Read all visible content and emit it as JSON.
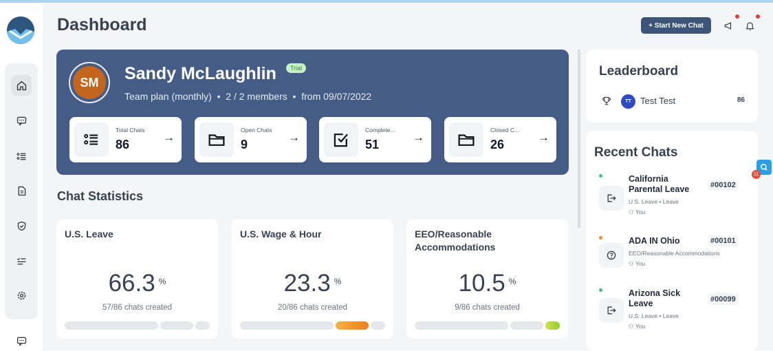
{
  "header": {
    "title": "Dashboard",
    "new_chat_label": "+ Start New Chat",
    "icons": [
      "megaphone-icon",
      "bell-icon"
    ]
  },
  "sidebar": {
    "items": [
      "home-icon",
      "chat-icon",
      "list-icon",
      "document-icon",
      "shield-icon",
      "checklist-icon",
      "gear-icon"
    ],
    "bottom": "chat-icon"
  },
  "profile": {
    "initials": "SM",
    "name": "Sandy McLaughlin",
    "badge": "Trial",
    "plan": "Team plan (monthly)",
    "members": "2 / 2 members",
    "since": "from 09/07/2022",
    "stats": [
      {
        "label": "Total Chats",
        "value": "86",
        "icon": "list-icon"
      },
      {
        "label": "Open Chats",
        "value": "9",
        "icon": "folder-icon"
      },
      {
        "label": "Complete...",
        "value": "51",
        "icon": "checkbox-icon"
      },
      {
        "label": "Closed C...",
        "value": "26",
        "icon": "folder-icon"
      }
    ]
  },
  "chat_statistics": {
    "title": "Chat Statistics",
    "cards": [
      {
        "title": "U.S. Leave",
        "percent": "66.3",
        "unit": "%",
        "sub": "57/86 chats created"
      },
      {
        "title": "U.S. Wage & Hour",
        "percent": "23.3",
        "unit": "%",
        "sub": "20/86 chats created"
      },
      {
        "title": "EEO/Reasonable Accommodations",
        "percent": "10.5",
        "unit": "%",
        "sub": "9/86 chats created"
      }
    ]
  },
  "leaderboard": {
    "title": "Leaderboard",
    "rows": [
      {
        "initials": "TT",
        "name": "Test Test",
        "score": "86"
      }
    ]
  },
  "recent_chats": {
    "title": "Recent Chats",
    "items": [
      {
        "name": "California Parental Leave",
        "id": "#00102",
        "category": "U.S. Leave • Leave",
        "user": "You",
        "icon": "exit-icon",
        "dot": "#3bbf8c"
      },
      {
        "name": "ADA IN Ohio",
        "id": "#00101",
        "category": "EEO/Reasonable Accommodations",
        "user": "You",
        "icon": "question-icon",
        "dot": "#f08a24"
      },
      {
        "name": "Arizona Sick Leave",
        "id": "#00099",
        "category": "U.S. Leave • Leave",
        "user": "You",
        "icon": "exit-icon",
        "dot": "#3bbf8c"
      }
    ]
  },
  "floating": {
    "badge": "11"
  },
  "colors": {
    "primary": "#445c86",
    "button": "#3b5478",
    "avatar": "#c4651e",
    "accent_orange": "#f08a24",
    "accent_green": "#a8d93c"
  }
}
